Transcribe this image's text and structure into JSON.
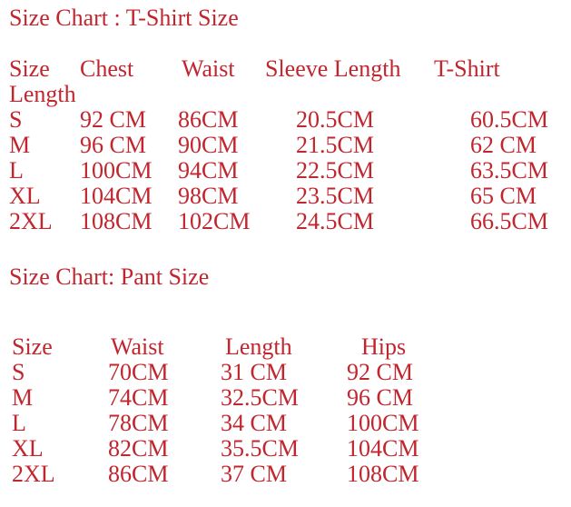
{
  "colors": {
    "text": "#c1262f",
    "background": "#ffffff"
  },
  "tshirt_chart": {
    "title": "Size Chart : T-Shirt Size",
    "header_row1": [
      "Size",
      "Chest",
      "Waist",
      "Sleeve Length",
      "T-Shirt"
    ],
    "header_row2": "Length",
    "rows": [
      [
        "S",
        "92 CM",
        "86CM",
        "20.5CM",
        "60.5CM"
      ],
      [
        "M",
        "96 CM",
        "90CM",
        "21.5CM",
        "62 CM"
      ],
      [
        "L",
        "100CM",
        "94CM",
        "22.5CM",
        "63.5CM"
      ],
      [
        "XL",
        "104CM",
        "98CM",
        "23.5CM",
        "65 CM"
      ],
      [
        "2XL",
        "108CM",
        "102CM",
        "24.5CM",
        "66.5CM"
      ]
    ]
  },
  "pant_chart": {
    "title": "Size Chart: Pant Size",
    "header_row": [
      "Size",
      "Waist",
      "Length",
      "Hips"
    ],
    "rows": [
      [
        "S",
        "70CM",
        "31 CM",
        "92 CM"
      ],
      [
        "M",
        "74CM",
        "32.5CM",
        "96 CM"
      ],
      [
        "L",
        "78CM",
        "34 CM",
        "100CM"
      ],
      [
        "XL",
        "82CM",
        "35.5CM",
        "104CM"
      ],
      [
        "2XL",
        "86CM",
        "37 CM",
        "108CM"
      ]
    ]
  }
}
